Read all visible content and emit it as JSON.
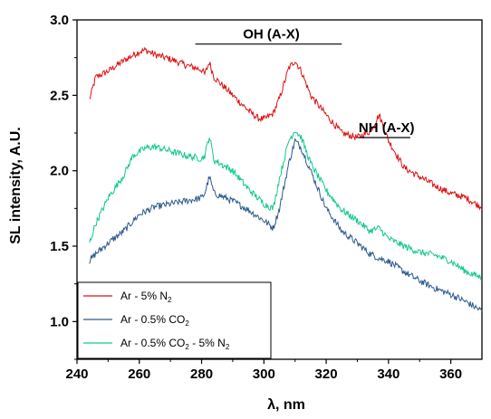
{
  "chart_data": {
    "type": "line",
    "xlabel": "λ, nm",
    "ylabel": "SL intensity, A.U.",
    "xlim": [
      240,
      370
    ],
    "ylim": [
      0.75,
      3.0
    ],
    "xticks": [
      "240",
      "260",
      "280",
      "300",
      "320",
      "340",
      "360"
    ],
    "yticks": [
      "1.0",
      "1.5",
      "2.0",
      "2.5",
      "3.0"
    ],
    "annotations": [
      {
        "text": "OH (A-X)",
        "bar_from": 278,
        "bar_to": 325,
        "y": 2.84
      },
      {
        "text": "NH (A-X)",
        "bar_from": 330,
        "bar_to": 347,
        "y": 2.22
      }
    ],
    "legend_position": "bottom-left",
    "series": [
      {
        "name_parts": [
          [
            "Ar - 5% N",
            false
          ],
          [
            "2",
            true
          ]
        ],
        "color": "#dd1111",
        "x": [
          244,
          246,
          250,
          255,
          260,
          262,
          265,
          270,
          275,
          280,
          281,
          282.5,
          284,
          290,
          295,
          298,
          300,
          303,
          305,
          308,
          310,
          312,
          315,
          320,
          325,
          330,
          334,
          337,
          340,
          345,
          350,
          355,
          360,
          365,
          368,
          370
        ],
        "y": [
          2.47,
          2.62,
          2.66,
          2.73,
          2.79,
          2.8,
          2.77,
          2.74,
          2.7,
          2.67,
          2.64,
          2.72,
          2.62,
          2.5,
          2.4,
          2.35,
          2.34,
          2.38,
          2.48,
          2.68,
          2.73,
          2.66,
          2.5,
          2.37,
          2.25,
          2.22,
          2.26,
          2.37,
          2.2,
          2.02,
          1.96,
          1.9,
          1.85,
          1.82,
          1.78,
          1.76
        ]
      },
      {
        "name_parts": [
          [
            "Ar - 0.5% CO",
            false
          ],
          [
            "2",
            true
          ]
        ],
        "color": "#2e5a8c",
        "x": [
          244,
          246,
          250,
          255,
          260,
          265,
          270,
          275,
          280,
          281,
          282.5,
          284,
          290,
          295,
          300,
          303,
          305,
          308,
          310,
          312,
          315,
          320,
          325,
          330,
          334,
          337,
          340,
          345,
          350,
          355,
          360,
          365,
          370
        ],
        "y": [
          1.4,
          1.45,
          1.52,
          1.6,
          1.71,
          1.76,
          1.78,
          1.8,
          1.82,
          1.85,
          1.96,
          1.85,
          1.8,
          1.74,
          1.67,
          1.62,
          1.75,
          2.05,
          2.2,
          2.15,
          2.0,
          1.75,
          1.6,
          1.52,
          1.45,
          1.42,
          1.4,
          1.33,
          1.27,
          1.22,
          1.18,
          1.13,
          1.07
        ]
      },
      {
        "name_parts": [
          [
            "Ar - 0.5% CO",
            false
          ],
          [
            "2",
            true
          ],
          [
            " - 5% N",
            false
          ],
          [
            "2",
            true
          ]
        ],
        "color": "#11c98a",
        "x": [
          244,
          246,
          250,
          255,
          258,
          262,
          265,
          270,
          275,
          280,
          281,
          282.5,
          284,
          290,
          295,
          300,
          303,
          305,
          308,
          310,
          312,
          315,
          320,
          325,
          330,
          334,
          337,
          340,
          345,
          350,
          355,
          360,
          365,
          370
        ],
        "y": [
          1.52,
          1.65,
          1.82,
          1.97,
          2.1,
          2.15,
          2.16,
          2.13,
          2.1,
          2.08,
          2.1,
          2.23,
          2.07,
          2.0,
          1.88,
          1.78,
          1.75,
          1.95,
          2.2,
          2.27,
          2.22,
          2.05,
          1.87,
          1.74,
          1.67,
          1.6,
          1.62,
          1.55,
          1.5,
          1.46,
          1.44,
          1.4,
          1.33,
          1.29
        ]
      }
    ]
  }
}
